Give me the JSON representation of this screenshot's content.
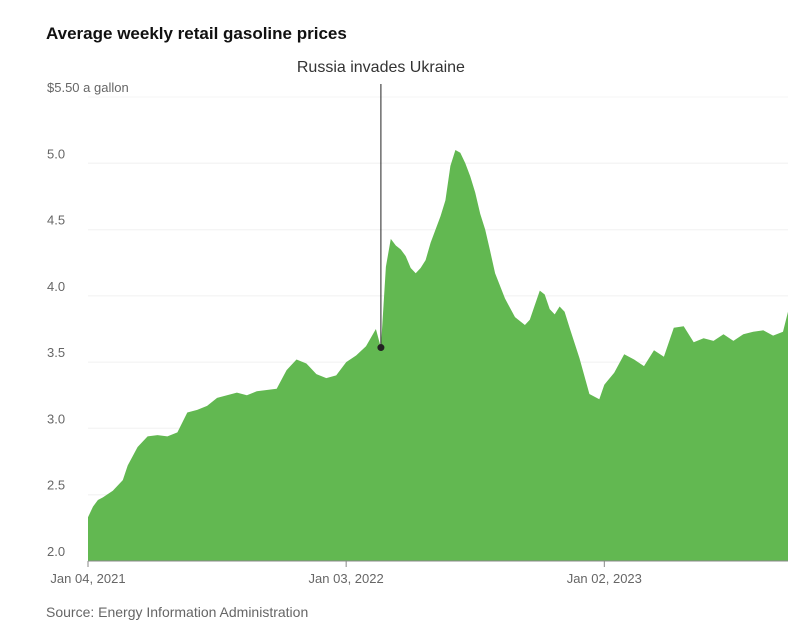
{
  "chart_data": {
    "type": "area",
    "title": "Average weekly retail gasoline prices",
    "source": "Source: Energy Information Administration",
    "color": "#62b851",
    "ylim": [
      2.0,
      5.5
    ],
    "yticks": [
      {
        "value": 5.5,
        "label": "$5.50 a gallon"
      },
      {
        "value": 5.0,
        "label": "5.0"
      },
      {
        "value": 4.5,
        "label": "4.5"
      },
      {
        "value": 4.0,
        "label": "4.0"
      },
      {
        "value": 3.5,
        "label": "3.5"
      },
      {
        "value": 3.0,
        "label": "3.0"
      },
      {
        "value": 2.5,
        "label": "2.5"
      },
      {
        "value": 2.0,
        "label": "2.0"
      }
    ],
    "xlim": [
      "2021-01-04",
      "2023-09-18"
    ],
    "xticks": [
      {
        "date": "2021-01-04",
        "label": "Jan 04, 2021"
      },
      {
        "date": "2022-01-03",
        "label": "Jan 03, 2022"
      },
      {
        "date": "2023-01-02",
        "label": "Jan 02, 2023"
      }
    ],
    "annotation": {
      "text": "Russia invades Ukraine",
      "date": "2022-02-21",
      "value": 3.61
    },
    "x": [
      "2021-01-04",
      "2021-01-11",
      "2021-01-18",
      "2021-01-25",
      "2021-02-08",
      "2021-02-22",
      "2021-03-01",
      "2021-03-15",
      "2021-03-29",
      "2021-04-12",
      "2021-04-26",
      "2021-05-10",
      "2021-05-24",
      "2021-06-07",
      "2021-06-21",
      "2021-07-05",
      "2021-07-19",
      "2021-08-02",
      "2021-08-16",
      "2021-08-30",
      "2021-09-13",
      "2021-09-27",
      "2021-10-11",
      "2021-10-25",
      "2021-11-08",
      "2021-11-22",
      "2021-12-06",
      "2021-12-20",
      "2022-01-03",
      "2022-01-17",
      "2022-01-31",
      "2022-02-14",
      "2022-02-21",
      "2022-02-28",
      "2022-03-07",
      "2022-03-14",
      "2022-03-21",
      "2022-03-28",
      "2022-04-04",
      "2022-04-11",
      "2022-04-18",
      "2022-04-25",
      "2022-05-02",
      "2022-05-09",
      "2022-05-16",
      "2022-05-23",
      "2022-05-30",
      "2022-06-06",
      "2022-06-13",
      "2022-06-20",
      "2022-06-27",
      "2022-07-04",
      "2022-07-11",
      "2022-07-18",
      "2022-07-25",
      "2022-08-01",
      "2022-08-15",
      "2022-08-29",
      "2022-09-12",
      "2022-09-19",
      "2022-09-26",
      "2022-10-03",
      "2022-10-10",
      "2022-10-17",
      "2022-10-24",
      "2022-10-31",
      "2022-11-07",
      "2022-11-14",
      "2022-11-28",
      "2022-12-12",
      "2022-12-26",
      "2023-01-02",
      "2023-01-16",
      "2023-01-30",
      "2023-02-13",
      "2023-02-27",
      "2023-03-13",
      "2023-03-27",
      "2023-04-10",
      "2023-04-24",
      "2023-05-08",
      "2023-05-22",
      "2023-06-05",
      "2023-06-19",
      "2023-07-03",
      "2023-07-17",
      "2023-07-31",
      "2023-08-14",
      "2023-08-28",
      "2023-09-11",
      "2023-09-18"
    ],
    "values": [
      2.33,
      2.41,
      2.46,
      2.48,
      2.53,
      2.61,
      2.72,
      2.86,
      2.94,
      2.95,
      2.94,
      2.97,
      3.12,
      3.14,
      3.17,
      3.23,
      3.25,
      3.27,
      3.25,
      3.28,
      3.29,
      3.3,
      3.44,
      3.52,
      3.49,
      3.41,
      3.38,
      3.4,
      3.5,
      3.55,
      3.62,
      3.75,
      3.61,
      4.22,
      4.43,
      4.38,
      4.35,
      4.3,
      4.21,
      4.17,
      4.21,
      4.27,
      4.4,
      4.5,
      4.6,
      4.72,
      4.98,
      5.1,
      5.08,
      5.0,
      4.9,
      4.78,
      4.62,
      4.5,
      4.34,
      4.17,
      3.98,
      3.84,
      3.78,
      3.82,
      3.93,
      4.04,
      4.01,
      3.9,
      3.86,
      3.92,
      3.88,
      3.76,
      3.53,
      3.26,
      3.22,
      3.33,
      3.42,
      3.56,
      3.52,
      3.47,
      3.59,
      3.54,
      3.76,
      3.77,
      3.65,
      3.68,
      3.66,
      3.71,
      3.66,
      3.71,
      3.73,
      3.74,
      3.7,
      3.73,
      3.88
    ]
  }
}
